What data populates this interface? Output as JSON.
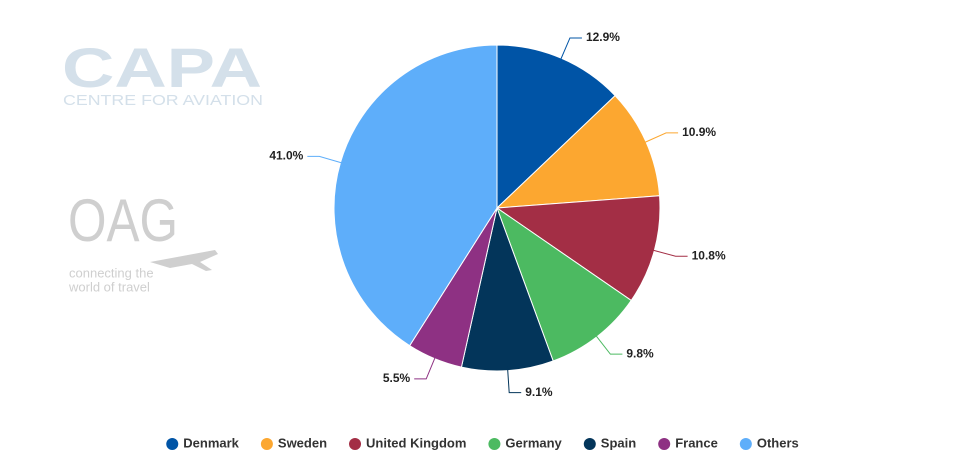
{
  "chart_data": {
    "type": "pie",
    "categories": [
      "Denmark",
      "Sweden",
      "United Kingdom",
      "Germany",
      "Spain",
      "France",
      "Others"
    ],
    "values": [
      12.9,
      10.9,
      10.8,
      9.8,
      9.1,
      5.5,
      41.0
    ],
    "value_labels": [
      "12.9%",
      "10.9%",
      "10.8%",
      "9.8%",
      "9.1%",
      "5.5%",
      "41.0%"
    ],
    "colors": [
      "#0054a6",
      "#fca730",
      "#a32e45",
      "#4cba61",
      "#03355a",
      "#8e3183",
      "#5eaefa"
    ],
    "legend": "bottom"
  },
  "logos": {
    "capa": "CAPA",
    "capa_tagline": "CENTRE FOR AVIATION",
    "oag": "OAG",
    "oag_tagline": [
      "connecting the",
      "world of travel"
    ]
  }
}
